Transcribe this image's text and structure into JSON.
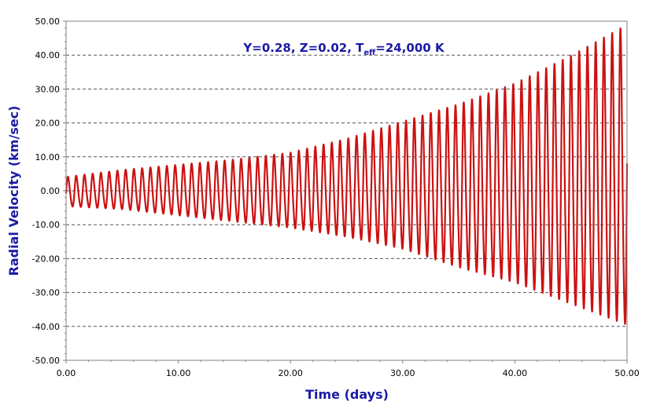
{
  "chart_data": {
    "type": "line",
    "title": "",
    "annotation": {
      "prefix": "Y=0.28, Z=0.02, T",
      "subscript": "eff",
      "suffix": "=24,000 K"
    },
    "xlabel": "Time (days)",
    "ylabel": "Radial Velocity (km/sec)",
    "xlim": [
      0,
      50
    ],
    "ylim": [
      -50,
      50
    ],
    "xticks": [
      0,
      10,
      20,
      30,
      40,
      50
    ],
    "yticks": [
      -50,
      -40,
      -30,
      -20,
      -10,
      0,
      10,
      20,
      30,
      40,
      50
    ],
    "xtick_labels": [
      "0.00",
      "10.00",
      "20.00",
      "30.00",
      "40.00",
      "50.00"
    ],
    "ytick_labels": [
      "-50.00",
      "-40.00",
      "-30.00",
      "-20.00",
      "-10.00",
      "0.00",
      "10.00",
      "20.00",
      "30.00",
      "40.00",
      "50.00"
    ],
    "grid": "horizontal-dashed",
    "series": [
      {
        "color": "#cc1111",
        "period_days": 0.735,
        "envelope": {
          "time": [
            0,
            5,
            10,
            15,
            20,
            25,
            30,
            35,
            40,
            45,
            50
          ],
          "max": [
            4,
            6,
            7.5,
            9,
            11,
            15,
            20,
            25,
            31,
            39,
            48
          ],
          "min": [
            -5,
            -6,
            -8,
            -10,
            -12,
            -15,
            -19,
            -25,
            -30,
            -37,
            -44
          ]
        }
      }
    ]
  },
  "colors": {
    "line": "#cc1111",
    "axis_text": "#1a1aa6",
    "grid": "#555555"
  }
}
